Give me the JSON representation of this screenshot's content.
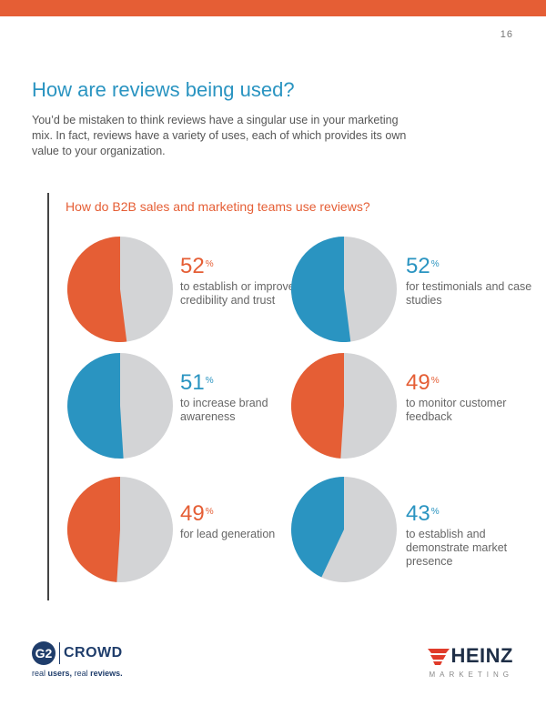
{
  "colors": {
    "orange": "#e55e35",
    "blue": "#2a94c1",
    "grey": "#d3d4d6",
    "navy": "#1f3d6b"
  },
  "page": {
    "number": "16"
  },
  "heading": {
    "title": "How are reviews being used?",
    "intro": "You’d be mistaken to think reviews have a singular use in your marketing mix. In fact, reviews have a variety of uses, each of which provides its own value to your organization."
  },
  "chart_data": {
    "type": "pie",
    "title": "How do B2B sales and marketing teams use reviews?",
    "items": [
      {
        "value": 52,
        "pct": "52",
        "unit": "%",
        "label": "to establish or improve credibility and trust",
        "color": "#e55e35"
      },
      {
        "value": 52,
        "pct": "52",
        "unit": "%",
        "label": "for testimonials and case studies",
        "color": "#2a94c1"
      },
      {
        "value": 51,
        "pct": "51",
        "unit": "%",
        "label": "to increase brand awareness",
        "color": "#2a94c1"
      },
      {
        "value": 49,
        "pct": "49",
        "unit": "%",
        "label": "to monitor customer feedback",
        "color": "#e55e35"
      },
      {
        "value": 49,
        "pct": "49",
        "unit": "%",
        "label": "for lead generation",
        "color": "#e55e35"
      },
      {
        "value": 43,
        "pct": "43",
        "unit": "%",
        "label": "to establish and demonstrate market presence",
        "color": "#2a94c1"
      }
    ]
  },
  "footer": {
    "g2_mark": "G2",
    "g2_name": "CROWD",
    "tagline_1": "real",
    "tagline_2": "users,",
    "tagline_3": "real",
    "tagline_4": "reviews.",
    "heinz_name": "HEINZ",
    "heinz_sub": "MARKETING"
  }
}
